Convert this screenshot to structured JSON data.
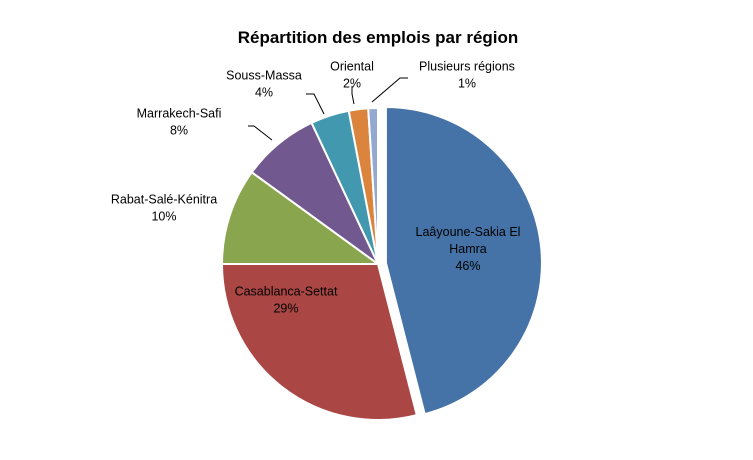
{
  "chart_data": {
    "type": "pie",
    "title": "Répartition des emplois par région",
    "slices": [
      {
        "label": "Laâyoune-Sakia El Hamra",
        "value": 46,
        "display": "46%",
        "color": "#4572A7"
      },
      {
        "label": "Casablanca-Settat",
        "value": 29,
        "display": "29%",
        "color": "#AA4643"
      },
      {
        "label": "Rabat-Salé-Kénitra",
        "value": 10,
        "display": "10%",
        "color": "#89A54E"
      },
      {
        "label": "Marrakech-Safi",
        "value": 8,
        "display": "8%",
        "color": "#71588F"
      },
      {
        "label": "Souss-Massa",
        "value": 4,
        "display": "4%",
        "color": "#4198AF"
      },
      {
        "label": "Oriental",
        "value": 2,
        "display": "2%",
        "color": "#DB843D"
      },
      {
        "label": "Plusieurs régions",
        "value": 1,
        "display": "1%",
        "color": "#93A9CF"
      }
    ],
    "legend": "none"
  }
}
